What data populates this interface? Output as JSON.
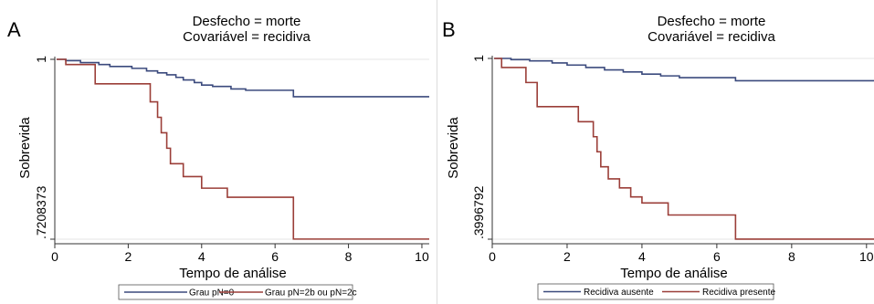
{
  "chart_data": [
    {
      "type": "line",
      "panel_letter": "A",
      "title": "Desfecho = morte",
      "subtitle": "Covariável = recidiva",
      "xlabel": "Tempo de análise",
      "ylabel": "Sobrevida",
      "xlim": [
        0,
        10.2
      ],
      "ylim": [
        0.7208373,
        1
      ],
      "xticks": [
        0,
        2,
        4,
        6,
        8,
        10
      ],
      "xtick_labels": [
        "0",
        "2",
        "4",
        "6",
        "8",
        "10"
      ],
      "yticks": [
        0.7208373,
        1
      ],
      "ytick_labels": [
        ".7208373",
        "1"
      ],
      "step": true,
      "grid": "horizontal",
      "legend_position": "bottom",
      "series": [
        {
          "name": "Grau pN=0",
          "color": "#3b4a7d",
          "x": [
            0.05,
            0.3,
            0.7,
            1.2,
            1.5,
            2.1,
            2.5,
            2.8,
            3.05,
            3.3,
            3.5,
            3.8,
            4.0,
            4.3,
            4.8,
            5.2,
            6.5,
            10.2
          ],
          "y": [
            1.0,
            0.998,
            0.995,
            0.992,
            0.989,
            0.986,
            0.982,
            0.979,
            0.976,
            0.972,
            0.968,
            0.964,
            0.96,
            0.958,
            0.954,
            0.952,
            0.942,
            0.942
          ]
        },
        {
          "name": "Grau pN=2b ou pN=2c",
          "color": "#9b3e38",
          "x": [
            0.05,
            0.3,
            1.1,
            2.6,
            2.8,
            2.9,
            3.05,
            3.15,
            3.5,
            4.0,
            4.7,
            6.5,
            10.2
          ],
          "y": [
            1.0,
            0.992,
            0.962,
            0.934,
            0.91,
            0.886,
            0.862,
            0.838,
            0.818,
            0.8,
            0.786,
            0.721,
            0.721
          ]
        }
      ]
    },
    {
      "type": "line",
      "panel_letter": "B",
      "title": "Desfecho = morte",
      "subtitle": "Covariável = recidiva",
      "xlabel": "Tempo de análise",
      "ylabel": "Sobrevida",
      "xlim": [
        0,
        10.2
      ],
      "ylim": [
        0.3996792,
        1
      ],
      "xticks": [
        0,
        2,
        4,
        6,
        8,
        10
      ],
      "xtick_labels": [
        "0",
        "2",
        "4",
        "6",
        "8",
        "10"
      ],
      "yticks": [
        0.3996792,
        1
      ],
      "ytick_labels": [
        ".3996792",
        "1"
      ],
      "step": true,
      "grid": "horizontal",
      "legend_position": "bottom",
      "series": [
        {
          "name": "Recidiva ausente",
          "color": "#3b4a7d",
          "x": [
            0.05,
            0.5,
            1.0,
            1.6,
            2.0,
            2.5,
            3.0,
            3.5,
            4.0,
            4.5,
            5.0,
            6.5,
            10.2
          ],
          "y": [
            1.0,
            0.996,
            0.992,
            0.985,
            0.978,
            0.97,
            0.962,
            0.955,
            0.948,
            0.942,
            0.936,
            0.926,
            0.926
          ]
        },
        {
          "name": "Recidiva presente",
          "color": "#9b3e38",
          "x": [
            0.05,
            0.25,
            0.9,
            1.2,
            2.3,
            2.7,
            2.8,
            2.9,
            3.1,
            3.4,
            3.7,
            4.0,
            4.7,
            6.5,
            10.2
          ],
          "y": [
            1.0,
            0.97,
            0.92,
            0.84,
            0.79,
            0.74,
            0.69,
            0.64,
            0.6,
            0.57,
            0.54,
            0.52,
            0.48,
            0.4,
            0.4
          ]
        }
      ]
    }
  ]
}
